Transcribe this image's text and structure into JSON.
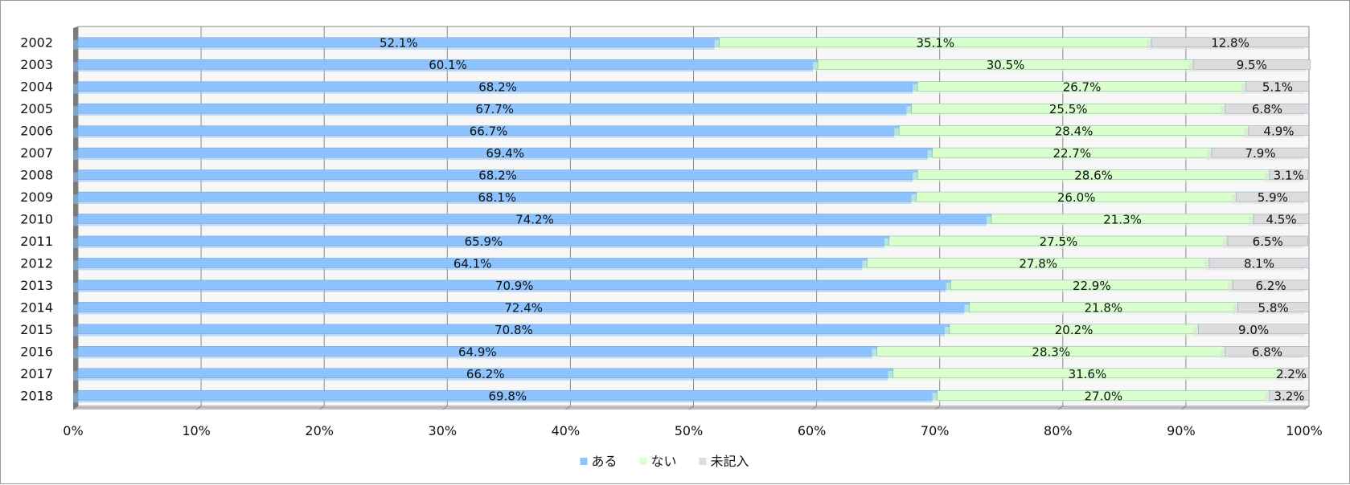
{
  "chart_data": {
    "type": "bar",
    "orientation": "horizontal",
    "stacked": "percent",
    "title": "",
    "xlabel": "",
    "ylabel": "",
    "xlim": [
      0,
      100
    ],
    "x_ticks": [
      "0%",
      "10%",
      "20%",
      "30%",
      "40%",
      "50%",
      "60%",
      "70%",
      "80%",
      "90%",
      "100%"
    ],
    "grid": true,
    "legend_position": "bottom",
    "categories": [
      "2002",
      "2003",
      "2004",
      "2005",
      "2006",
      "2007",
      "2008",
      "2009",
      "2010",
      "2011",
      "2012",
      "2013",
      "2014",
      "2015",
      "2016",
      "2017",
      "2018"
    ],
    "series": [
      {
        "name": "ある",
        "color": "#8cc3ff",
        "values": [
          52.1,
          60.1,
          68.2,
          67.7,
          66.7,
          69.4,
          68.2,
          68.1,
          74.2,
          65.9,
          64.1,
          70.9,
          72.4,
          70.8,
          64.9,
          66.2,
          69.8
        ],
        "labels": [
          "52.1%",
          "60.1%",
          "68.2%",
          "67.7%",
          "66.7%",
          "69.4%",
          "68.2%",
          "68.1%",
          "74.2%",
          "65.9%",
          "64.1%",
          "70.9%",
          "72.4%",
          "70.8%",
          "64.9%",
          "66.2%",
          "69.8%"
        ]
      },
      {
        "name": "ない",
        "color": "#d9ffcc",
        "values": [
          35.1,
          30.5,
          26.7,
          25.5,
          28.4,
          22.7,
          28.6,
          26.0,
          21.3,
          27.5,
          27.8,
          22.9,
          21.8,
          20.2,
          28.3,
          31.6,
          27.0
        ],
        "labels": [
          "35.1%",
          "30.5%",
          "26.7%",
          "25.5%",
          "28.4%",
          "22.7%",
          "28.6%",
          "26.0%",
          "21.3%",
          "27.5%",
          "27.8%",
          "22.9%",
          "21.8%",
          "20.2%",
          "28.3%",
          "31.6%",
          "27.0%"
        ]
      },
      {
        "name": "未記入",
        "color": "#dcdcdc",
        "values": [
          12.8,
          9.5,
          5.1,
          6.8,
          4.9,
          7.9,
          3.1,
          5.9,
          4.5,
          6.5,
          8.1,
          6.2,
          5.8,
          9.0,
          6.8,
          2.2,
          3.2
        ],
        "labels": [
          "12.8%",
          "9.5%",
          "5.1%",
          "6.8%",
          "4.9%",
          "7.9%",
          "3.1%",
          "5.9%",
          "4.5%",
          "6.5%",
          "8.1%",
          "6.2%",
          "5.8%",
          "9.0%",
          "6.8%",
          "2.2%",
          "3.2%"
        ]
      }
    ]
  }
}
